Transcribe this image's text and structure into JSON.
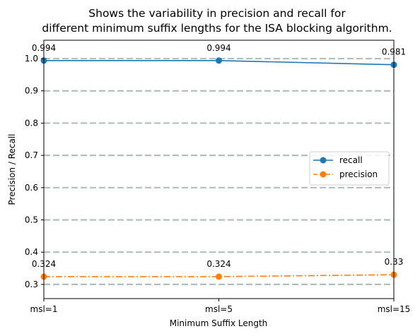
{
  "chart_data": {
    "type": "line",
    "title_lines": [
      "Shows the variability in precision and recall for",
      "different minimum suffix lengths for the ISA blocking algorithm."
    ],
    "xlabel": "Minimum Suffix Length",
    "ylabel": "Precision / Recall",
    "categories": [
      "msl=1",
      "msl=5",
      "msl=15"
    ],
    "ylim": [
      0.256,
      1.057
    ],
    "yticks": [
      "0.3",
      "0.4",
      "0.5",
      "0.6",
      "0.7",
      "0.8",
      "0.9",
      "1.0"
    ],
    "grid": "horizontal dashed",
    "legend_position": "center-right",
    "series": [
      {
        "name": "recall",
        "values": [
          0.994,
          0.994,
          0.981
        ],
        "labels": [
          "0.994",
          "0.994",
          "0.981"
        ],
        "color": "#1f77b4",
        "line_style": "solid",
        "marker": "circle"
      },
      {
        "name": "precision",
        "values": [
          0.324,
          0.324,
          0.33
        ],
        "labels": [
          "0.324",
          "0.324",
          "0.33"
        ],
        "color": "#ff7f0e",
        "line_style": "dash-dot",
        "marker": "circle"
      }
    ],
    "grid_color": "#b0bfbc"
  }
}
